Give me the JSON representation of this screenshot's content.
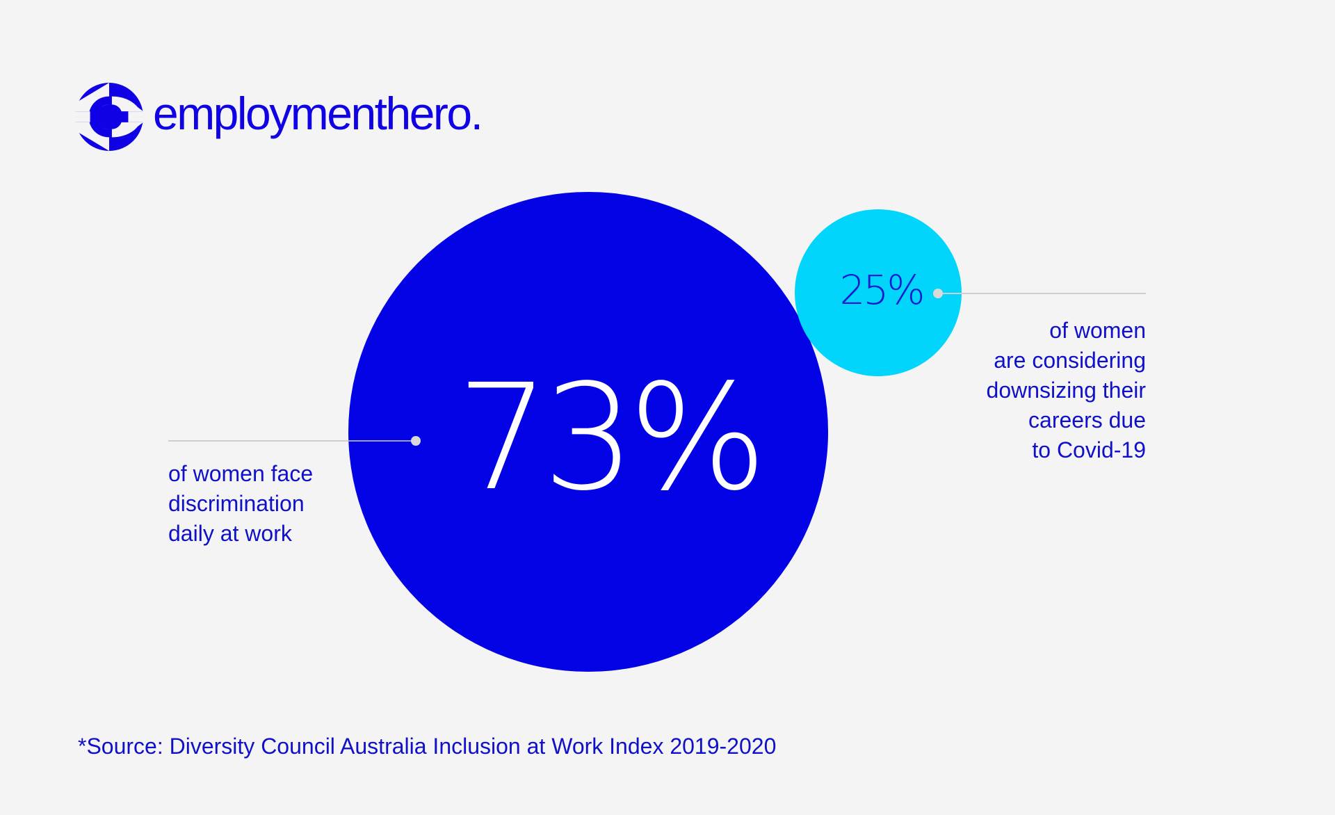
{
  "brand": {
    "name": "employmenthero.",
    "color": "#1000e6"
  },
  "stats": {
    "primary": {
      "value": "73%",
      "caption_lines": [
        "of women face",
        "discrimination",
        "daily at work"
      ],
      "circle_color": "#0303e6"
    },
    "secondary": {
      "value": "25%",
      "caption_lines": [
        "of women",
        "are considering",
        "downsizing their",
        "careers due",
        "to Covid-19"
      ],
      "circle_color": "#02d5fb"
    }
  },
  "source": "*Source: Diversity Council Australia Inclusion at Work Index 2019-2020"
}
